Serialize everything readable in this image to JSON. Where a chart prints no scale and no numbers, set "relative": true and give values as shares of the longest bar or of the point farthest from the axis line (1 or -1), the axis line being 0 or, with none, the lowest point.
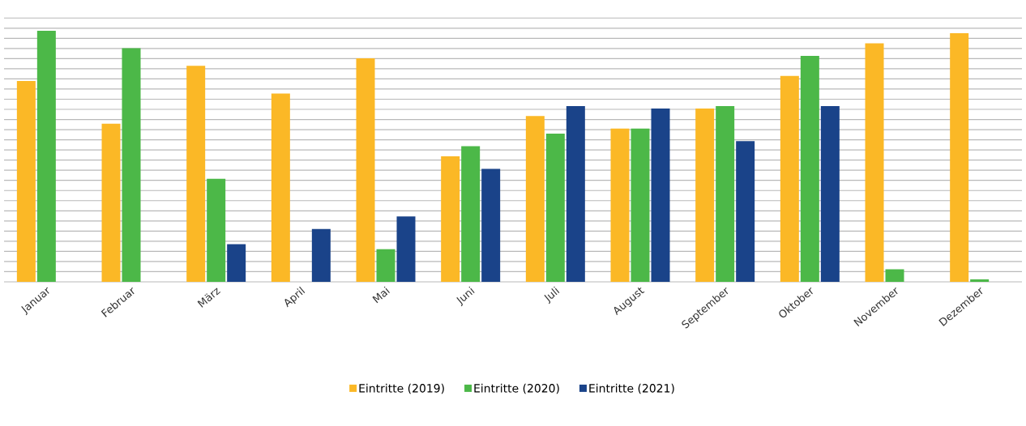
{
  "chart_data": {
    "type": "bar",
    "relative": true,
    "grid": "y",
    "legend": "bottom",
    "categories": [
      "Januar",
      "Februar",
      "März",
      "April",
      "Mai",
      "Juni",
      "Juli",
      "August",
      "September",
      "Oktober",
      "November",
      "Dezember"
    ],
    "series": [
      {
        "name": "Eintritte (2019)",
        "color": "#fbb826",
        "values": [
          0.8,
          0.63,
          0.86,
          0.75,
          0.89,
          0.5,
          0.66,
          0.61,
          0.69,
          0.82,
          0.95,
          0.99
        ]
      },
      {
        "name": "Eintritte (2020)",
        "color": "#4cb848",
        "values": [
          1,
          0.93,
          0.41,
          0,
          0.13,
          0.54,
          0.59,
          0.61,
          0.7,
          0.9,
          0.05,
          0.01
        ]
      },
      {
        "name": "Eintritte (2021)",
        "color": "#1a4389",
        "values": [
          null,
          null,
          0.15,
          0.21,
          0.26,
          0.45,
          0.7,
          0.69,
          0.56,
          0.7,
          null,
          null
        ]
      }
    ]
  }
}
